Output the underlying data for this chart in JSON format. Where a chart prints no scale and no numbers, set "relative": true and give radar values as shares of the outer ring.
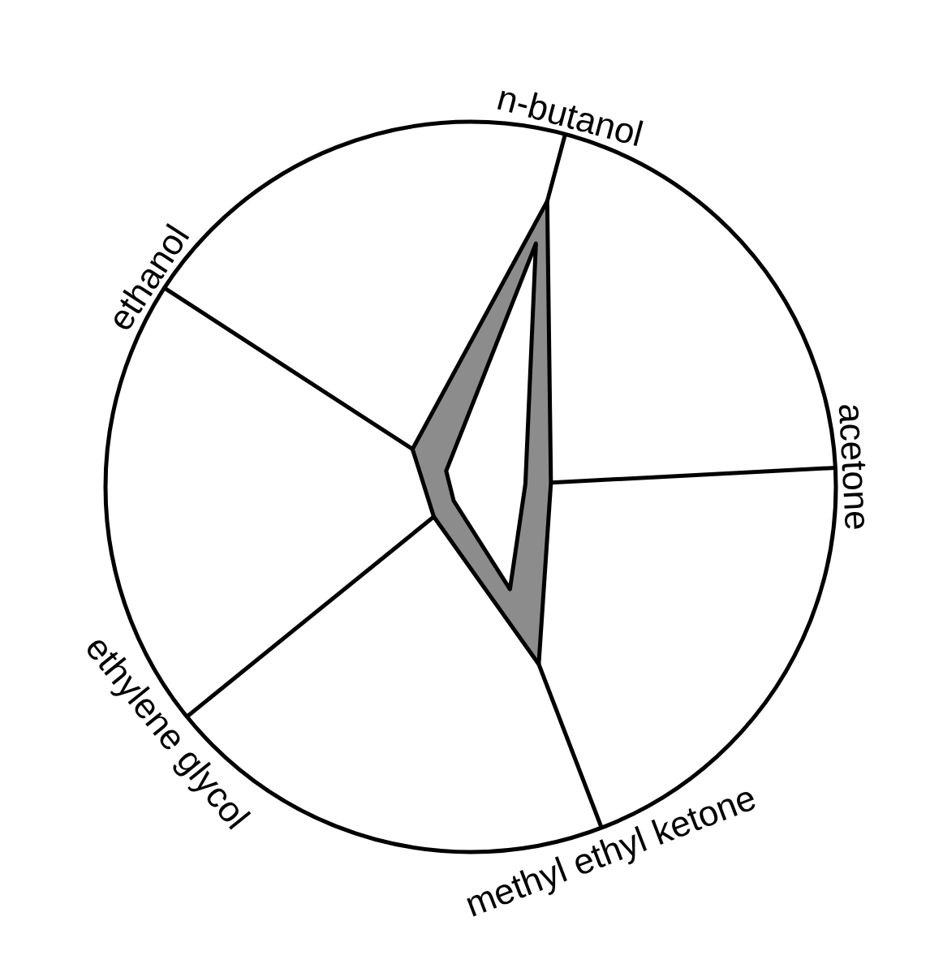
{
  "chart_data": {
    "type": "radar",
    "relative": true,
    "categories": [
      "n-butanol",
      "acetone",
      "methyl ethyl ketone",
      "ethylene glycol",
      "ethanol"
    ],
    "series": [
      {
        "color": "#8c8c8c",
        "values": [
          0.81,
          0.22,
          0.52,
          0.13,
          0.19
        ]
      },
      {
        "color": "#ffffff",
        "values": [
          0.69,
          0.15,
          0.3,
          0.06,
          0.08
        ]
      }
    ]
  }
}
